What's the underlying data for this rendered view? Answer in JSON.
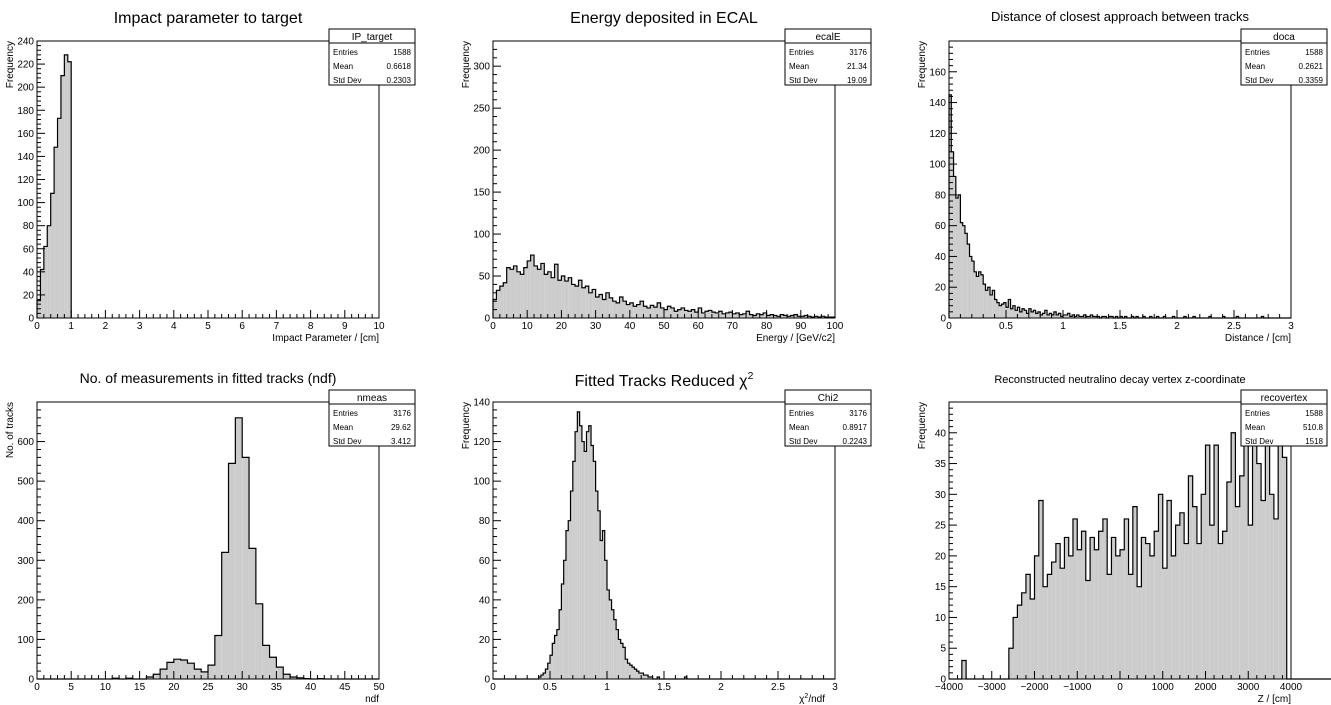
{
  "chart_data": [
    {
      "type": "bar",
      "title": "Impact parameter to target",
      "xlabel": "Impact Parameter / [cm]",
      "ylabel": "Frequency",
      "xlim": [
        0,
        10
      ],
      "ylim": [
        0,
        240
      ],
      "xticks": [
        "0",
        "1",
        "2",
        "3",
        "4",
        "5",
        "6",
        "7",
        "8",
        "9",
        "10"
      ],
      "yticks": [
        "0",
        "20",
        "40",
        "60",
        "80",
        "100",
        "120",
        "140",
        "160",
        "180",
        "200",
        "220",
        "240"
      ],
      "stats": {
        "name": "IP_target",
        "rows": [
          [
            "Entries",
            "1588"
          ],
          [
            "Mean",
            "0.6618"
          ],
          [
            "Std Dev",
            "0.2303"
          ]
        ]
      },
      "bin_start": 0,
      "bin_width": 0.1,
      "values": [
        15,
        42,
        62,
        80,
        108,
        148,
        173,
        210,
        228,
        222
      ]
    },
    {
      "type": "bar",
      "title": "Energy deposited in ECAL",
      "xlabel": "Energy / [GeV/c2]",
      "ylabel": "Frequency",
      "xlim": [
        0,
        100
      ],
      "ylim": [
        0,
        330
      ],
      "xticks": [
        "0",
        "10",
        "20",
        "30",
        "40",
        "50",
        "60",
        "70",
        "80",
        "90",
        "100"
      ],
      "yticks": [
        "0",
        "50",
        "100",
        "150",
        "200",
        "250",
        "300"
      ],
      "stats": {
        "name": "ecalE",
        "rows": [
          [
            "Entries",
            "3176"
          ],
          [
            "Mean",
            "21.34"
          ],
          [
            "Std Dev",
            "19.09"
          ]
        ]
      },
      "bin_start": 0,
      "bin_width": 1,
      "values": [
        22,
        33,
        38,
        42,
        60,
        58,
        62,
        55,
        52,
        60,
        68,
        75,
        62,
        58,
        65,
        52,
        55,
        48,
        64,
        45,
        50,
        44,
        48,
        40,
        38,
        45,
        36,
        38,
        30,
        34,
        25,
        28,
        22,
        30,
        24,
        20,
        18,
        25,
        20,
        16,
        18,
        14,
        16,
        20,
        14,
        12,
        15,
        13,
        18,
        12,
        10,
        14,
        12,
        8,
        10,
        12,
        9,
        8,
        10,
        7,
        12,
        6,
        8,
        9,
        7,
        6,
        8,
        5,
        6,
        7,
        5,
        6,
        4,
        5,
        8,
        4,
        3,
        5,
        4,
        6,
        3,
        4,
        3,
        2,
        4,
        3,
        2,
        3,
        4,
        2,
        2,
        3,
        2,
        1,
        2,
        1,
        2,
        1,
        1,
        1
      ]
    },
    {
      "type": "bar",
      "title": "Distance of closest approach between tracks",
      "xlabel": "Distance / [cm]",
      "ylabel": "Frequency",
      "xlim": [
        0,
        3
      ],
      "ylim": [
        0,
        180
      ],
      "xticks": [
        "0",
        "0.5",
        "1",
        "1.5",
        "2",
        "2.5",
        "3"
      ],
      "yticks": [
        "0",
        "20",
        "40",
        "60",
        "80",
        "100",
        "120",
        "140",
        "160"
      ],
      "stats": {
        "name": "doca",
        "rows": [
          [
            "Entries",
            "1588"
          ],
          [
            "Mean",
            "0.2621"
          ],
          [
            "Std Dev",
            "0.3359"
          ]
        ]
      },
      "bin_start": 0,
      "bin_width": 0.02,
      "values": [
        145,
        108,
        92,
        78,
        80,
        62,
        60,
        55,
        48,
        40,
        37,
        30,
        27,
        30,
        28,
        22,
        18,
        20,
        15,
        18,
        12,
        10,
        8,
        9,
        10,
        7,
        12,
        6,
        8,
        5,
        7,
        4,
        6,
        5,
        3,
        6,
        4,
        5,
        3,
        4,
        2,
        3,
        5,
        2,
        3,
        2,
        4,
        2,
        3,
        1,
        2,
        2,
        3,
        1,
        2,
        1,
        2,
        1,
        1,
        2,
        1,
        1,
        2,
        1,
        1,
        1,
        0,
        1,
        1,
        0,
        1,
        1,
        0,
        1,
        0,
        1,
        0,
        1,
        0,
        0,
        1,
        0,
        1,
        0,
        0,
        1,
        0,
        0,
        1,
        0,
        0,
        1,
        0,
        0,
        1,
        0,
        0,
        0,
        1,
        0,
        0,
        0,
        0,
        1,
        0,
        0,
        0,
        1,
        0,
        0,
        0,
        0,
        0,
        0,
        1,
        0,
        0,
        0,
        0,
        0,
        1,
        0,
        0,
        0,
        0,
        0,
        1,
        0,
        0,
        0,
        0,
        0,
        0,
        0,
        0,
        0,
        0,
        1,
        0,
        0,
        0,
        0,
        0,
        0,
        0,
        0,
        0,
        0,
        0,
        0
      ]
    },
    {
      "type": "bar",
      "title": "No. of measurements in fitted tracks (ndf)",
      "xlabel": "ndf",
      "ylabel": "No. of tracks",
      "xlim": [
        0,
        50
      ],
      "ylim": [
        0,
        700
      ],
      "xticks": [
        "0",
        "5",
        "10",
        "15",
        "20",
        "25",
        "30",
        "35",
        "40",
        "45",
        "50"
      ],
      "yticks": [
        "0",
        "100",
        "200",
        "300",
        "400",
        "500",
        "600"
      ],
      "stats": {
        "name": "nmeas",
        "rows": [
          [
            "Entries",
            "3176"
          ],
          [
            "Mean",
            "29.62"
          ],
          [
            "Std Dev",
            "3.412"
          ]
        ]
      },
      "bin_start": 0,
      "bin_width": 1,
      "values": [
        0,
        0,
        0,
        0,
        0,
        0,
        0,
        0,
        0,
        0,
        0,
        2,
        0,
        2,
        0,
        0,
        5,
        12,
        25,
        42,
        50,
        48,
        40,
        25,
        18,
        35,
        110,
        320,
        545,
        660,
        560,
        330,
        190,
        85,
        55,
        30,
        12,
        5,
        3,
        1,
        0,
        1,
        0,
        0,
        0,
        0,
        0,
        0,
        0,
        0
      ]
    },
    {
      "type": "bar",
      "title": "Fitted Tracks Reduced χ²",
      "title_main": "Fitted Tracks Reduced χ",
      "title_sup": "2",
      "xlabel": "χ²/ndf",
      "xlabel_main": "χ",
      "xlabel_sup": "2",
      "xlabel_tail": "/ndf",
      "ylabel": "Frequency",
      "xlim": [
        0,
        3
      ],
      "ylim": [
        0,
        140
      ],
      "xticks": [
        "0",
        "0.5",
        "1",
        "1.5",
        "2",
        "2.5",
        "3"
      ],
      "yticks": [
        "0",
        "20",
        "40",
        "60",
        "80",
        "100",
        "120",
        "140"
      ],
      "stats": {
        "name": "Chi2",
        "rows": [
          [
            "Entries",
            "3176"
          ],
          [
            "Mean",
            "0.8917"
          ],
          [
            "Std Dev",
            "0.2243"
          ]
        ]
      },
      "bin_start": 0,
      "bin_width": 0.02,
      "values": [
        0,
        0,
        0,
        0,
        0,
        0,
        0,
        0,
        0,
        0,
        0,
        0,
        0,
        0,
        0,
        0,
        0,
        0,
        0,
        0,
        1,
        2,
        3,
        5,
        8,
        12,
        18,
        22,
        25,
        35,
        48,
        60,
        75,
        80,
        95,
        110,
        125,
        135,
        128,
        120,
        115,
        125,
        128,
        118,
        110,
        95,
        85,
        70,
        75,
        60,
        45,
        40,
        35,
        30,
        25,
        20,
        18,
        16,
        10,
        8,
        7,
        6,
        5,
        4,
        3,
        3,
        2,
        2,
        1,
        1,
        0,
        0,
        1,
        0,
        0,
        0,
        0,
        0,
        0,
        0,
        0,
        0,
        0,
        0,
        1,
        0,
        0,
        0,
        0,
        0,
        0,
        0,
        0,
        0,
        0,
        0,
        0,
        0,
        0,
        0,
        0,
        0,
        0,
        0,
        0,
        0,
        0,
        0,
        0,
        0,
        0,
        0,
        0,
        0,
        0,
        0,
        0,
        0,
        0,
        0,
        0,
        0,
        0,
        0,
        0,
        0,
        0,
        0,
        0,
        0,
        0,
        0,
        0,
        0,
        0,
        0,
        0,
        0,
        0,
        0,
        0,
        0,
        0,
        0,
        0,
        0,
        0,
        0,
        0,
        0
      ]
    },
    {
      "type": "bar",
      "title": "Reconstructed neutralino decay vertex z-coordinate",
      "xlabel": "Z / [cm]",
      "ylabel": "Frequency",
      "xlim": [
        -4000,
        4000
      ],
      "ylim": [
        0,
        45
      ],
      "xticks": [
        "−4000",
        "−3000",
        "−2000",
        "−1000",
        "0",
        "1000",
        "2000",
        "3000",
        "4000"
      ],
      "yticks": [
        "0",
        "5",
        "10",
        "15",
        "20",
        "25",
        "30",
        "35",
        "40"
      ],
      "stats": {
        "name": "recovertex",
        "rows": [
          [
            "Entries",
            "1588"
          ],
          [
            "Mean",
            "510.8"
          ],
          [
            "Std Dev",
            "1518"
          ]
        ]
      },
      "bin_start": -4000,
      "bin_width": 100,
      "values": [
        0,
        0,
        0,
        3,
        0,
        0,
        0,
        0,
        0,
        0,
        0,
        0,
        0,
        0,
        5,
        10,
        12,
        14,
        17,
        13,
        20,
        29,
        15,
        17,
        19,
        22,
        18,
        23,
        20,
        26,
        21,
        24,
        16,
        23,
        21,
        24,
        26,
        17,
        23,
        20,
        21,
        26,
        17,
        28,
        15,
        23,
        22,
        20,
        24,
        30,
        18,
        29,
        20,
        25,
        27,
        22,
        33,
        28,
        22,
        30,
        38,
        25,
        38,
        22,
        24,
        32,
        40,
        28,
        33,
        41,
        25,
        38,
        35,
        29,
        42,
        30,
        26,
        38,
        36,
        0,
        0,
        0,
        0,
        0,
        0,
        0,
        0,
        0,
        0,
        0
      ]
    }
  ]
}
